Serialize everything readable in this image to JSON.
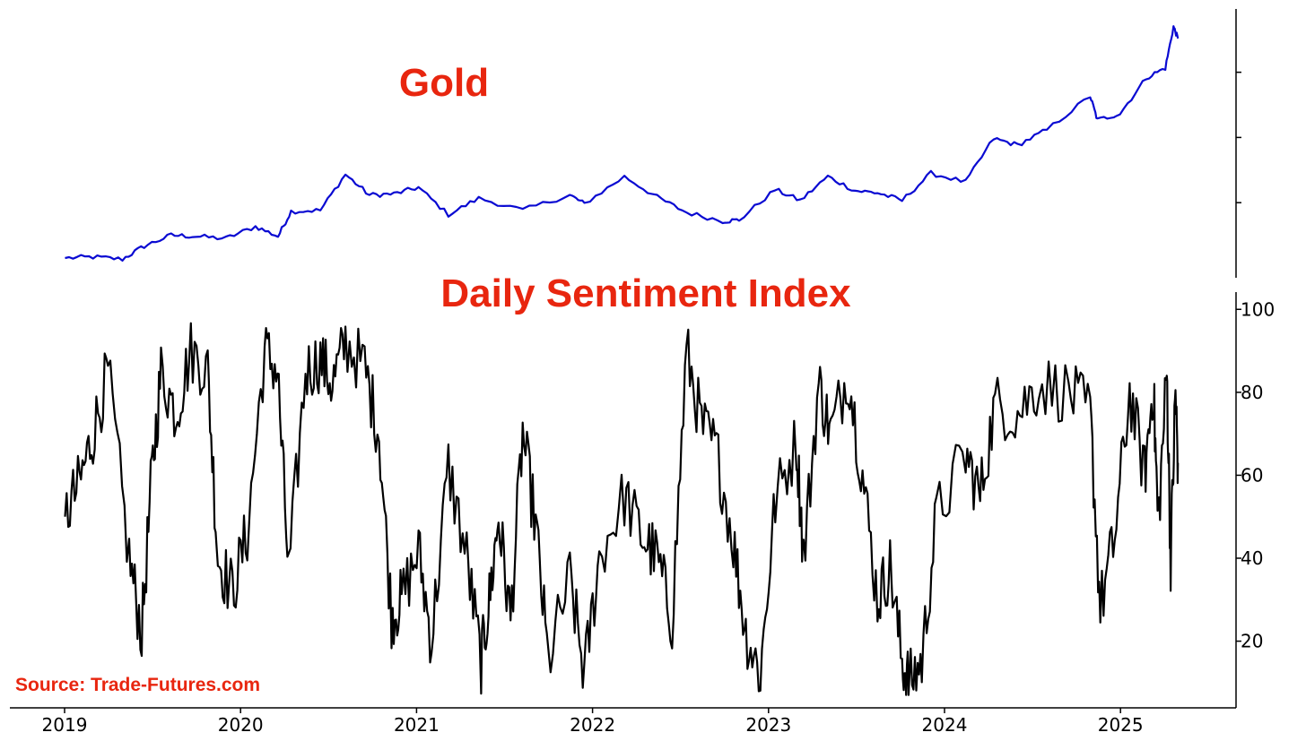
{
  "source_note": "Source: Trade-Futures.com",
  "colors": {
    "title": "#e8260f",
    "gold_line": "#0a0ad2",
    "sentiment_line": "#000000",
    "axis": "#000000"
  },
  "chart_data": [
    {
      "type": "line",
      "title": "Gold",
      "xlabel": "",
      "ylabel": "",
      "y_tick_labels_shown": false,
      "y_ticks": [
        1800,
        2400,
        3000
      ],
      "ylim": [
        1150,
        3500
      ],
      "grid": false,
      "series": [
        {
          "x": [
            "2019-01-02",
            "2019-03-01",
            "2019-05-01",
            "2019-06-15",
            "2019-08-10",
            "2019-10-01",
            "2019-12-01",
            "2020-02-01",
            "2020-03-19",
            "2020-04-15",
            "2020-06-15",
            "2020-08-06",
            "2020-09-25",
            "2020-11-15",
            "2021-01-05",
            "2021-03-08",
            "2021-05-10",
            "2021-08-09",
            "2021-11-15",
            "2021-12-15",
            "2022-03-08",
            "2022-05-15",
            "2022-07-15",
            "2022-09-28",
            "2022-11-01",
            "2023-01-15",
            "2023-03-08",
            "2023-05-04",
            "2023-06-30",
            "2023-08-15",
            "2023-10-05",
            "2023-12-04",
            "2024-02-14",
            "2024-04-12",
            "2024-06-01",
            "2024-08-01",
            "2024-10-30",
            "2024-11-14",
            "2024-12-31",
            "2025-02-24",
            "2025-04-04",
            "2025-04-21",
            "2025-04-30"
          ],
          "values": [
            1290,
            1300,
            1280,
            1400,
            1500,
            1490,
            1470,
            1580,
            1490,
            1720,
            1730,
            2060,
            1870,
            1880,
            1940,
            1690,
            1840,
            1730,
            1870,
            1790,
            2040,
            1850,
            1710,
            1630,
            1640,
            1920,
            1820,
            2040,
            1910,
            1890,
            1820,
            2070,
            1990,
            2390,
            2330,
            2470,
            2780,
            2560,
            2620,
            2950,
            3040,
            3420,
            3310
          ]
        }
      ]
    },
    {
      "type": "line",
      "title": "Daily Sentiment Index",
      "xlabel": "",
      "ylabel": "",
      "ylim": [
        5,
        102
      ],
      "y_ticks": [
        20,
        40,
        60,
        80,
        100
      ],
      "y_tick_labels": [
        "20",
        "40",
        "60",
        "80",
        "100"
      ],
      "x_tick_labels": [
        "2019",
        "2020",
        "2021",
        "2022",
        "2023",
        "2024",
        "2025"
      ],
      "grid": false,
      "series": [
        {
          "x": [
            "2019-01-02",
            "2019-02-01",
            "2019-03-01",
            "2019-04-01",
            "2019-05-15",
            "2019-06-10",
            "2019-07-01",
            "2019-07-20",
            "2019-08-20",
            "2019-09-20",
            "2019-10-25",
            "2019-11-15",
            "2019-12-15",
            "2020-01-15",
            "2020-02-20",
            "2020-03-18",
            "2020-04-10",
            "2020-05-15",
            "2020-06-15",
            "2020-07-10",
            "2020-08-06",
            "2020-09-15",
            "2020-10-15",
            "2020-11-10",
            "2020-12-01",
            "2021-01-05",
            "2021-02-01",
            "2021-03-08",
            "2021-04-15",
            "2021-05-15",
            "2021-06-01",
            "2021-06-20",
            "2021-07-15",
            "2021-08-09",
            "2021-09-05",
            "2021-10-01",
            "2021-11-15",
            "2021-12-15",
            "2022-01-15",
            "2022-03-08",
            "2022-04-15",
            "2022-05-15",
            "2022-06-15",
            "2022-07-15",
            "2022-08-15",
            "2022-09-15",
            "2022-10-20",
            "2022-11-15",
            "2022-12-15",
            "2023-01-15",
            "2023-02-28",
            "2023-03-15",
            "2023-04-15",
            "2023-05-10",
            "2023-06-15",
            "2023-07-15",
            "2023-08-15",
            "2023-09-10",
            "2023-10-05",
            "2023-10-20",
            "2023-11-15",
            "2023-12-15",
            "2024-02-14",
            "2024-03-15",
            "2024-04-15",
            "2024-06-01",
            "2024-07-15",
            "2024-09-15",
            "2024-10-30",
            "2024-11-20",
            "2024-12-20",
            "2025-01-20",
            "2025-02-20",
            "2025-03-10",
            "2025-03-20",
            "2025-04-07",
            "2025-04-15",
            "2025-04-25",
            "2025-04-30"
          ],
          "values": [
            50,
            58,
            70,
            85,
            40,
            22,
            60,
            85,
            75,
            90,
            85,
            40,
            32,
            46,
            90,
            85,
            36,
            85,
            88,
            82,
            92,
            86,
            70,
            26,
            30,
            42,
            20,
            62,
            40,
            15,
            30,
            50,
            25,
            70,
            48,
            15,
            35,
            12,
            40,
            55,
            45,
            40,
            25,
            90,
            72,
            66,
            44,
            22,
            12,
            54,
            68,
            40,
            82,
            70,
            85,
            60,
            30,
            38,
            15,
            10,
            15,
            50,
            65,
            55,
            77,
            75,
            82,
            80,
            75,
            28,
            45,
            80,
            60,
            82,
            48,
            85,
            40,
            80,
            63
          ]
        }
      ]
    }
  ]
}
